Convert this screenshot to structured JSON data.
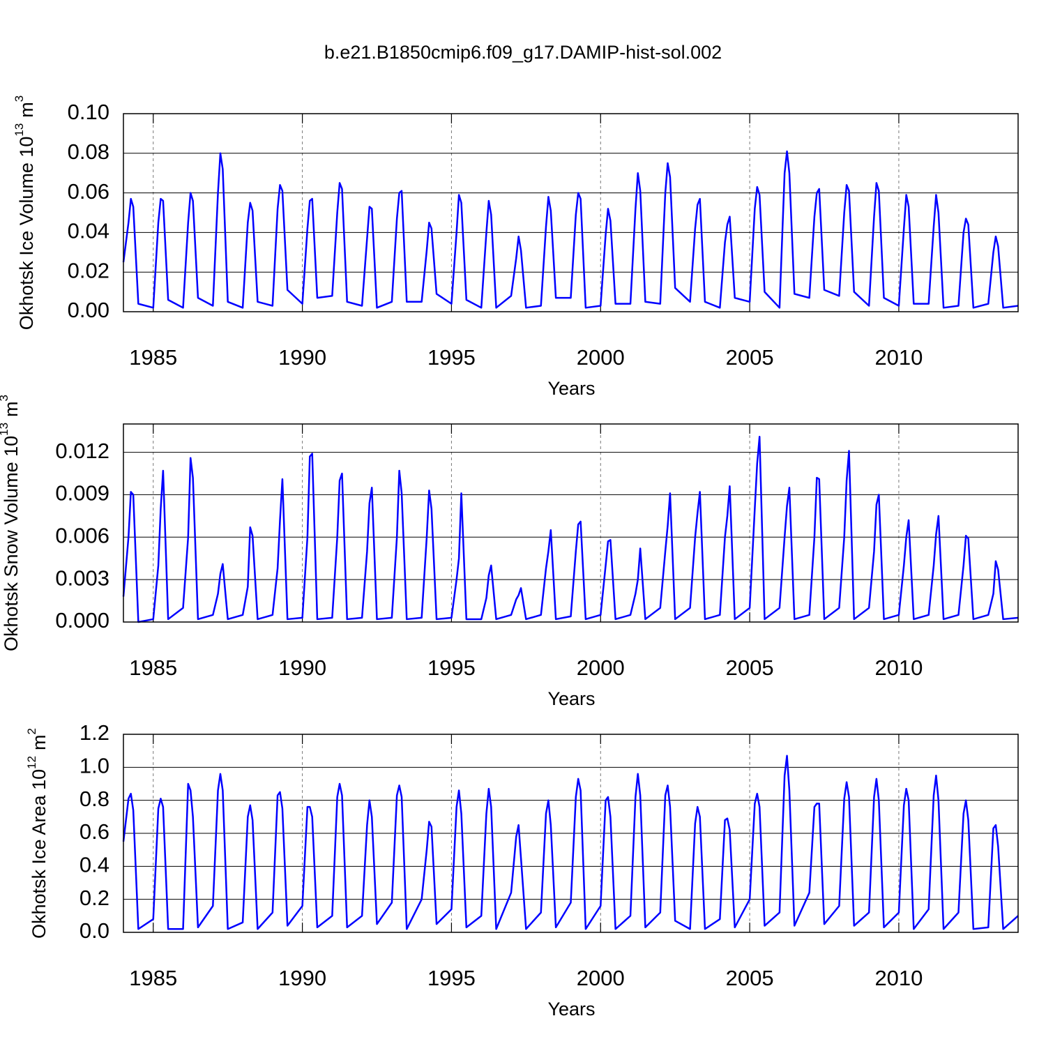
{
  "title": "b.e21.B1850cmip6.f09_g17.DAMIP-hist-sol.002",
  "chart_data": [
    {
      "type": "line",
      "ylabel": "Okhotsk Ice Volume 10",
      "ylabel_exp": "13",
      "ylabel_unit": "m",
      "ylabel_unit_exp": "3",
      "xlabel": "Years",
      "color": "#0000ff",
      "xgrid": true,
      "xlim": [
        1984,
        2014
      ],
      "xticks": [
        1985,
        1990,
        1995,
        2000,
        2005,
        2010
      ],
      "ylim": [
        0,
        0.1
      ],
      "yticks": [
        {
          "value": 0,
          "label": "0.00"
        },
        {
          "value": 0.02,
          "label": "0.02"
        },
        {
          "value": 0.04,
          "label": "0.04"
        },
        {
          "value": 0.06,
          "label": "0.06"
        },
        {
          "value": 0.08,
          "label": "0.08"
        },
        {
          "value": 0.1,
          "label": "0.10"
        }
      ],
      "x": [
        1984,
        1984.17,
        1984.25,
        1984.33,
        1984.5,
        1985,
        1985.17,
        1985.25,
        1985.33,
        1985.5,
        1986,
        1986.17,
        1986.25,
        1986.33,
        1986.5,
        1987,
        1987.17,
        1987.25,
        1987.33,
        1987.5,
        1988,
        1988.17,
        1988.25,
        1988.33,
        1988.5,
        1989,
        1989.17,
        1989.25,
        1989.33,
        1989.5,
        1990,
        1990.17,
        1990.25,
        1990.33,
        1990.5,
        1991,
        1991.17,
        1991.25,
        1991.33,
        1991.5,
        1992,
        1992.17,
        1992.25,
        1992.33,
        1992.5,
        1993,
        1993.17,
        1993.25,
        1993.33,
        1993.5,
        1994,
        1994.17,
        1994.25,
        1994.33,
        1994.5,
        1995,
        1995.17,
        1995.25,
        1995.33,
        1995.5,
        1996,
        1996.17,
        1996.25,
        1996.33,
        1996.5,
        1997,
        1997.17,
        1997.25,
        1997.33,
        1997.5,
        1998,
        1998.17,
        1998.25,
        1998.33,
        1998.5,
        1999,
        1999.17,
        1999.25,
        1999.33,
        1999.5,
        2000,
        2000.17,
        2000.25,
        2000.33,
        2000.5,
        2001,
        2001.17,
        2001.25,
        2001.33,
        2001.5,
        2002,
        2002.17,
        2002.25,
        2002.33,
        2002.5,
        2003,
        2003.17,
        2003.25,
        2003.33,
        2003.5,
        2004,
        2004.17,
        2004.25,
        2004.33,
        2004.5,
        2005,
        2005.17,
        2005.25,
        2005.33,
        2005.5,
        2006,
        2006.17,
        2006.25,
        2006.33,
        2006.5,
        2007,
        2007.17,
        2007.25,
        2007.33,
        2007.5,
        2008,
        2008.17,
        2008.25,
        2008.33,
        2008.5,
        2009,
        2009.17,
        2009.25,
        2009.33,
        2009.5,
        2010,
        2010.17,
        2010.25,
        2010.33,
        2010.5,
        2011,
        2011.17,
        2011.25,
        2011.33,
        2011.5,
        2012,
        2012.17,
        2012.25,
        2012.33,
        2012.5,
        2013,
        2013.17,
        2013.25,
        2013.33,
        2013.5,
        2014
      ],
      "values": [
        0.025,
        0.045,
        0.057,
        0.053,
        0.004,
        0.002,
        0.045,
        0.057,
        0.056,
        0.006,
        0.002,
        0.045,
        0.06,
        0.056,
        0.007,
        0.003,
        0.06,
        0.08,
        0.072,
        0.005,
        0.002,
        0.045,
        0.055,
        0.051,
        0.005,
        0.003,
        0.052,
        0.064,
        0.061,
        0.011,
        0.004,
        0.042,
        0.056,
        0.057,
        0.007,
        0.008,
        0.05,
        0.065,
        0.062,
        0.005,
        0.003,
        0.037,
        0.053,
        0.052,
        0.002,
        0.005,
        0.047,
        0.06,
        0.061,
        0.005,
        0.005,
        0.031,
        0.045,
        0.042,
        0.009,
        0.004,
        0.04,
        0.059,
        0.055,
        0.006,
        0.002,
        0.04,
        0.056,
        0.049,
        0.002,
        0.008,
        0.027,
        0.038,
        0.031,
        0.002,
        0.003,
        0.043,
        0.058,
        0.051,
        0.007,
        0.007,
        0.049,
        0.06,
        0.057,
        0.002,
        0.003,
        0.039,
        0.052,
        0.046,
        0.004,
        0.004,
        0.052,
        0.07,
        0.061,
        0.005,
        0.004,
        0.06,
        0.075,
        0.068,
        0.012,
        0.005,
        0.042,
        0.054,
        0.057,
        0.005,
        0.002,
        0.035,
        0.044,
        0.048,
        0.007,
        0.005,
        0.052,
        0.063,
        0.059,
        0.01,
        0.002,
        0.07,
        0.081,
        0.07,
        0.009,
        0.007,
        0.048,
        0.06,
        0.062,
        0.011,
        0.008,
        0.05,
        0.064,
        0.061,
        0.01,
        0.003,
        0.048,
        0.065,
        0.061,
        0.007,
        0.003,
        0.042,
        0.059,
        0.053,
        0.004,
        0.004,
        0.043,
        0.059,
        0.05,
        0.002,
        0.003,
        0.04,
        0.047,
        0.044,
        0.002,
        0.004,
        0.03,
        0.038,
        0.033,
        0.002,
        0.003
      ]
    },
    {
      "type": "line",
      "ylabel": "Okhotsk Snow Volume 10",
      "ylabel_exp": "13",
      "ylabel_unit": "m",
      "ylabel_unit_exp": "3",
      "xlabel": "Years",
      "color": "#0000ff",
      "xgrid": true,
      "xlim": [
        1984,
        2014
      ],
      "xticks": [
        1985,
        1990,
        1995,
        2000,
        2005,
        2010
      ],
      "ylim": [
        0,
        0.014
      ],
      "yticks": [
        {
          "value": 0,
          "label": "0.000"
        },
        {
          "value": 0.003,
          "label": "0.003"
        },
        {
          "value": 0.006,
          "label": "0.006"
        },
        {
          "value": 0.009,
          "label": "0.009"
        },
        {
          "value": 0.012,
          "label": "0.012"
        }
      ],
      "x": [
        1984,
        1984.17,
        1984.25,
        1984.33,
        1984.5,
        1985,
        1985.17,
        1985.25,
        1985.33,
        1985.5,
        1986,
        1986.17,
        1986.25,
        1986.33,
        1986.5,
        1987,
        1987.17,
        1987.25,
        1987.33,
        1987.5,
        1988,
        1988.17,
        1988.25,
        1988.33,
        1988.5,
        1989,
        1989.17,
        1989.25,
        1989.33,
        1989.5,
        1990,
        1990.17,
        1990.25,
        1990.33,
        1990.5,
        1991,
        1991.17,
        1991.25,
        1991.33,
        1991.5,
        1992,
        1992.17,
        1992.25,
        1992.33,
        1992.5,
        1993,
        1993.17,
        1993.25,
        1993.33,
        1993.5,
        1994,
        1994.17,
        1994.25,
        1994.33,
        1994.5,
        1995,
        1995.17,
        1995.25,
        1995.33,
        1995.5,
        1996,
        1996.17,
        1996.25,
        1996.33,
        1996.5,
        1997,
        1997.17,
        1997.25,
        1997.33,
        1997.5,
        1998,
        1998.17,
        1998.25,
        1998.33,
        1998.5,
        1999,
        1999.17,
        1999.25,
        1999.33,
        1999.5,
        2000,
        2000.17,
        2000.25,
        2000.33,
        2000.5,
        2001,
        2001.17,
        2001.25,
        2001.33,
        2001.5,
        2002,
        2002.17,
        2002.25,
        2002.33,
        2002.5,
        2003,
        2003.17,
        2003.25,
        2003.33,
        2003.5,
        2004,
        2004.17,
        2004.25,
        2004.33,
        2004.5,
        2005,
        2005.17,
        2005.25,
        2005.33,
        2005.5,
        2006,
        2006.17,
        2006.25,
        2006.33,
        2006.5,
        2007,
        2007.17,
        2007.25,
        2007.33,
        2007.5,
        2008,
        2008.17,
        2008.25,
        2008.33,
        2008.5,
        2009,
        2009.17,
        2009.25,
        2009.33,
        2009.5,
        2010,
        2010.17,
        2010.25,
        2010.33,
        2010.5,
        2011,
        2011.17,
        2011.25,
        2011.33,
        2011.5,
        2012,
        2012.17,
        2012.25,
        2012.33,
        2012.5,
        2013,
        2013.17,
        2013.25,
        2013.33,
        2013.5,
        2014
      ],
      "values": [
        0.0018,
        0.006,
        0.0092,
        0.009,
        0,
        0.0002,
        0.004,
        0.008,
        0.0107,
        0.0002,
        0.001,
        0.006,
        0.0116,
        0.0102,
        0.0002,
        0.0005,
        0.002,
        0.0034,
        0.0041,
        0.0002,
        0.0005,
        0.0025,
        0.0067,
        0.0061,
        0.0002,
        0.0005,
        0.0038,
        0.0072,
        0.0101,
        0.0002,
        0.0003,
        0.006,
        0.0117,
        0.0119,
        0.0002,
        0.0003,
        0.006,
        0.01,
        0.0105,
        0.0002,
        0.0003,
        0.005,
        0.0084,
        0.0095,
        0.0002,
        0.0003,
        0.006,
        0.0107,
        0.0091,
        0.0002,
        0.0003,
        0.006,
        0.0093,
        0.008,
        0.0002,
        0.0003,
        0.003,
        0.0045,
        0.0091,
        0.0002,
        0.0002,
        0.0017,
        0.0033,
        0.004,
        0.0002,
        0.0005,
        0.0016,
        0.0019,
        0.0024,
        0.0002,
        0.0005,
        0.0038,
        0.005,
        0.0065,
        0.0002,
        0.0004,
        0.005,
        0.0069,
        0.0071,
        0.0002,
        0.0005,
        0.004,
        0.0057,
        0.0058,
        0.0002,
        0.0005,
        0.002,
        0.003,
        0.0052,
        0.0002,
        0.001,
        0.005,
        0.0068,
        0.0091,
        0.0002,
        0.001,
        0.006,
        0.0077,
        0.0092,
        0.0002,
        0.0005,
        0.006,
        0.0075,
        0.0096,
        0.0002,
        0.001,
        0.008,
        0.0112,
        0.0131,
        0.0002,
        0.001,
        0.006,
        0.0082,
        0.0095,
        0.0002,
        0.0005,
        0.006,
        0.0102,
        0.0101,
        0.0002,
        0.001,
        0.006,
        0.01,
        0.0121,
        0.0002,
        0.001,
        0.005,
        0.0083,
        0.009,
        0.0002,
        0.0005,
        0.004,
        0.006,
        0.0072,
        0.0002,
        0.0005,
        0.004,
        0.0062,
        0.0075,
        0.0002,
        0.0005,
        0.004,
        0.0061,
        0.0059,
        0.0002,
        0.0005,
        0.002,
        0.0043,
        0.0037,
        0.0002,
        0.0003
      ]
    },
    {
      "type": "line",
      "ylabel": "Okhotsk Ice Area 10",
      "ylabel_exp": "12",
      "ylabel_unit": "m",
      "ylabel_unit_exp": "2",
      "xlabel": "Years",
      "color": "#0000ff",
      "xgrid": true,
      "xlim": [
        1984,
        2014
      ],
      "xticks": [
        1985,
        1990,
        1995,
        2000,
        2005,
        2010
      ],
      "ylim": [
        0,
        1.2
      ],
      "yticks": [
        {
          "value": 0,
          "label": "0.0"
        },
        0.2,
        0.4,
        0.6,
        0.8,
        {
          "value": 1,
          "label": "1.0"
        },
        1.2
      ],
      "x": [
        1984,
        1984.17,
        1984.25,
        1984.33,
        1984.5,
        1985,
        1985.17,
        1985.25,
        1985.33,
        1985.5,
        1986,
        1986.17,
        1986.25,
        1986.33,
        1986.5,
        1987,
        1987.17,
        1987.25,
        1987.33,
        1987.5,
        1988,
        1988.17,
        1988.25,
        1988.33,
        1988.5,
        1989,
        1989.17,
        1989.25,
        1989.33,
        1989.5,
        1990,
        1990.17,
        1990.25,
        1990.33,
        1990.5,
        1991,
        1991.17,
        1991.25,
        1991.33,
        1991.5,
        1992,
        1992.17,
        1992.25,
        1992.33,
        1992.5,
        1993,
        1993.17,
        1993.25,
        1993.33,
        1993.5,
        1994,
        1994.17,
        1994.25,
        1994.33,
        1994.5,
        1995,
        1995.17,
        1995.25,
        1995.33,
        1995.5,
        1996,
        1996.17,
        1996.25,
        1996.33,
        1996.5,
        1997,
        1997.17,
        1997.25,
        1997.33,
        1997.5,
        1998,
        1998.17,
        1998.25,
        1998.33,
        1998.5,
        1999,
        1999.17,
        1999.25,
        1999.33,
        1999.5,
        2000,
        2000.17,
        2000.25,
        2000.33,
        2000.5,
        2001,
        2001.17,
        2001.25,
        2001.33,
        2001.5,
        2002,
        2002.17,
        2002.25,
        2002.33,
        2002.5,
        2003,
        2003.17,
        2003.25,
        2003.33,
        2003.5,
        2004,
        2004.17,
        2004.25,
        2004.33,
        2004.5,
        2005,
        2005.17,
        2005.25,
        2005.33,
        2005.5,
        2006,
        2006.17,
        2006.25,
        2006.33,
        2006.5,
        2007,
        2007.17,
        2007.25,
        2007.33,
        2007.5,
        2008,
        2008.17,
        2008.25,
        2008.33,
        2008.5,
        2009,
        2009.17,
        2009.25,
        2009.33,
        2009.5,
        2010,
        2010.17,
        2010.25,
        2010.33,
        2010.5,
        2011,
        2011.17,
        2011.25,
        2011.33,
        2011.5,
        2012,
        2012.17,
        2012.25,
        2012.33,
        2012.5,
        2013,
        2013.17,
        2013.25,
        2013.33,
        2013.5,
        2014
      ],
      "values": [
        0.55,
        0.81,
        0.84,
        0.74,
        0.02,
        0.08,
        0.75,
        0.81,
        0.76,
        0.02,
        0.02,
        0.9,
        0.86,
        0.7,
        0.03,
        0.16,
        0.86,
        0.96,
        0.86,
        0.02,
        0.06,
        0.7,
        0.77,
        0.68,
        0.02,
        0.12,
        0.83,
        0.85,
        0.75,
        0.04,
        0.16,
        0.76,
        0.76,
        0.7,
        0.03,
        0.1,
        0.82,
        0.9,
        0.83,
        0.03,
        0.1,
        0.65,
        0.8,
        0.7,
        0.05,
        0.18,
        0.83,
        0.89,
        0.82,
        0.02,
        0.2,
        0.5,
        0.67,
        0.64,
        0.05,
        0.14,
        0.76,
        0.86,
        0.72,
        0.03,
        0.1,
        0.72,
        0.87,
        0.76,
        0.02,
        0.24,
        0.58,
        0.65,
        0.45,
        0.02,
        0.12,
        0.72,
        0.8,
        0.65,
        0.03,
        0.18,
        0.82,
        0.93,
        0.86,
        0.02,
        0.16,
        0.8,
        0.82,
        0.7,
        0.02,
        0.1,
        0.82,
        0.96,
        0.83,
        0.03,
        0.12,
        0.83,
        0.89,
        0.76,
        0.07,
        0.02,
        0.66,
        0.76,
        0.7,
        0.02,
        0.08,
        0.68,
        0.69,
        0.62,
        0.03,
        0.2,
        0.78,
        0.84,
        0.76,
        0.04,
        0.12,
        0.95,
        1.07,
        0.86,
        0.04,
        0.24,
        0.76,
        0.78,
        0.78,
        0.05,
        0.16,
        0.81,
        0.91,
        0.82,
        0.04,
        0.12,
        0.82,
        0.93,
        0.8,
        0.03,
        0.12,
        0.77,
        0.87,
        0.8,
        0.02,
        0.14,
        0.83,
        0.95,
        0.8,
        0.02,
        0.12,
        0.72,
        0.8,
        0.68,
        0.02,
        0.03,
        0.63,
        0.65,
        0.52,
        0.02,
        0.1
      ]
    }
  ]
}
